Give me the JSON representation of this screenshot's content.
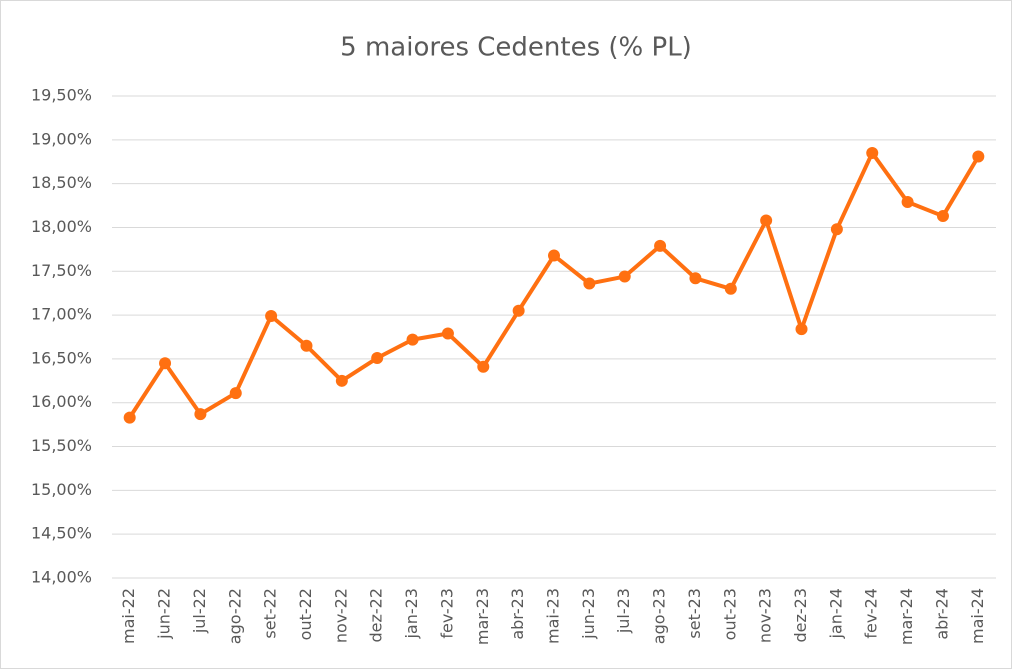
{
  "chart_data": {
    "type": "line",
    "title": "5 maiores Cedentes (% PL)",
    "categories": [
      "mai-22",
      "jun-22",
      "jul-22",
      "ago-22",
      "set-22",
      "out-22",
      "nov-22",
      "dez-22",
      "jan-23",
      "fev-23",
      "mar-23",
      "abr-23",
      "mai-23",
      "jun-23",
      "jul-23",
      "ago-23",
      "set-23",
      "out-23",
      "nov-23",
      "dez-23",
      "jan-24",
      "fev-24",
      "mar-24",
      "abr-24",
      "mai-24"
    ],
    "series": [
      {
        "name": "5 maiores Cedentes",
        "color": "#ff7011",
        "values": [
          15.83,
          16.45,
          15.87,
          16.11,
          16.99,
          16.65,
          16.25,
          16.51,
          16.72,
          16.79,
          16.41,
          17.05,
          17.68,
          17.36,
          17.44,
          17.79,
          17.42,
          17.3,
          18.08,
          16.84,
          17.98,
          18.85,
          18.29,
          18.13,
          18.81
        ]
      }
    ],
    "ylim": [
      14,
      19.5
    ],
    "yticks": [
      {
        "value": 14,
        "label": "14,00%"
      },
      {
        "value": 14.5,
        "label": "14,50%"
      },
      {
        "value": 15,
        "label": "15,00%"
      },
      {
        "value": 15.5,
        "label": "15,50%"
      },
      {
        "value": 16,
        "label": "16,00%"
      },
      {
        "value": 16.5,
        "label": "16,50%"
      },
      {
        "value": 17,
        "label": "17,00%"
      },
      {
        "value": 17.5,
        "label": "17,50%"
      },
      {
        "value": 18,
        "label": "18,00%"
      },
      {
        "value": 18.5,
        "label": "18,50%"
      },
      {
        "value": 19,
        "label": "19,00%"
      },
      {
        "value": 19.5,
        "label": "19,50%"
      }
    ],
    "grid": true
  }
}
